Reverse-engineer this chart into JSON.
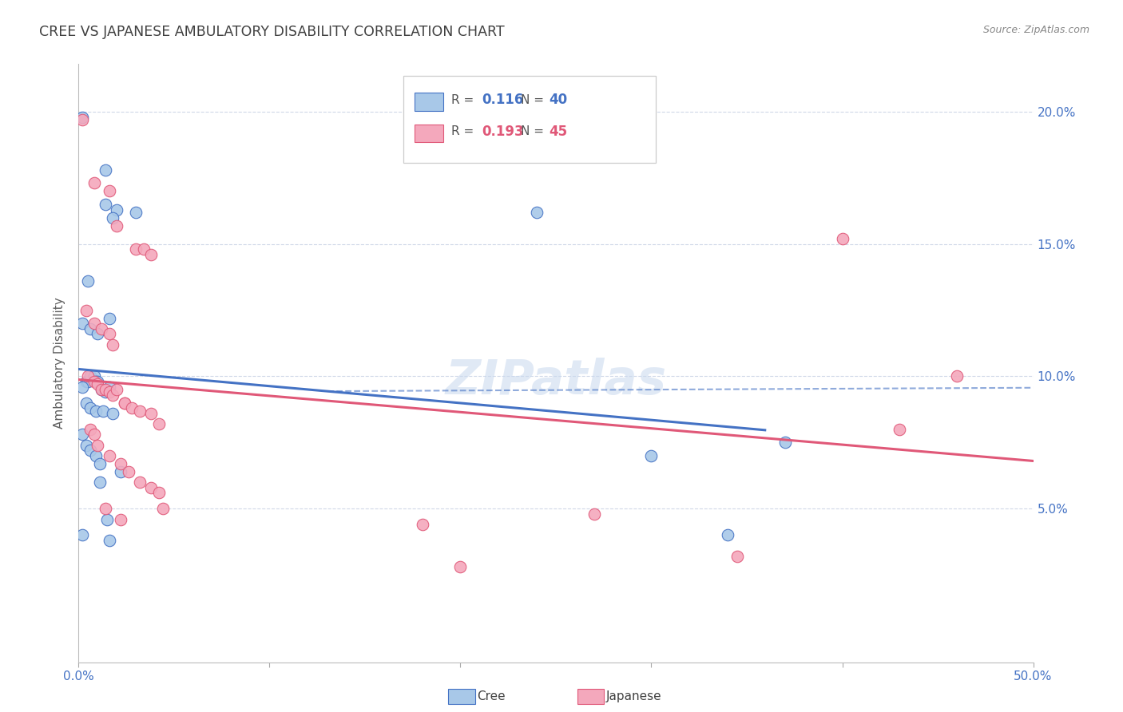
{
  "title": "CREE VS JAPANESE AMBULATORY DISABILITY CORRELATION CHART",
  "source": "Source: ZipAtlas.com",
  "ylabel": "Ambulatory Disability",
  "xlim": [
    0.0,
    0.5
  ],
  "ylim": [
    -0.008,
    0.218
  ],
  "yticks": [
    0.05,
    0.1,
    0.15,
    0.2
  ],
  "ytick_labels": [
    "5.0%",
    "10.0%",
    "15.0%",
    "20.0%"
  ],
  "xticks": [
    0.0,
    0.1,
    0.2,
    0.3,
    0.4,
    0.5
  ],
  "xtick_labels": [
    "0.0%",
    "",
    "",
    "",
    "",
    "50.0%"
  ],
  "cree_R": "0.116",
  "cree_N": "40",
  "japanese_R": "0.193",
  "japanese_N": "45",
  "cree_color": "#a8c8e8",
  "japanese_color": "#f4a8bc",
  "cree_line_color": "#4472c4",
  "japanese_line_color": "#e05878",
  "cree_scatter": [
    [
      0.002,
      0.198
    ],
    [
      0.014,
      0.178
    ],
    [
      0.014,
      0.165
    ],
    [
      0.02,
      0.163
    ],
    [
      0.018,
      0.16
    ],
    [
      0.03,
      0.162
    ],
    [
      0.005,
      0.136
    ],
    [
      0.002,
      0.12
    ],
    [
      0.006,
      0.118
    ],
    [
      0.01,
      0.116
    ],
    [
      0.016,
      0.122
    ],
    [
      0.004,
      0.098
    ],
    [
      0.005,
      0.098
    ],
    [
      0.006,
      0.1
    ],
    [
      0.008,
      0.1
    ],
    [
      0.009,
      0.098
    ],
    [
      0.01,
      0.098
    ],
    [
      0.012,
      0.095
    ],
    [
      0.014,
      0.094
    ],
    [
      0.016,
      0.096
    ],
    [
      0.002,
      0.096
    ],
    [
      0.004,
      0.09
    ],
    [
      0.006,
      0.088
    ],
    [
      0.009,
      0.087
    ],
    [
      0.013,
      0.087
    ],
    [
      0.018,
      0.086
    ],
    [
      0.002,
      0.078
    ],
    [
      0.004,
      0.074
    ],
    [
      0.006,
      0.072
    ],
    [
      0.009,
      0.07
    ],
    [
      0.011,
      0.067
    ],
    [
      0.022,
      0.064
    ],
    [
      0.011,
      0.06
    ],
    [
      0.002,
      0.04
    ],
    [
      0.015,
      0.046
    ],
    [
      0.016,
      0.038
    ],
    [
      0.24,
      0.162
    ],
    [
      0.3,
      0.07
    ],
    [
      0.34,
      0.04
    ],
    [
      0.37,
      0.075
    ]
  ],
  "japanese_scatter": [
    [
      0.002,
      0.197
    ],
    [
      0.008,
      0.173
    ],
    [
      0.016,
      0.17
    ],
    [
      0.02,
      0.157
    ],
    [
      0.03,
      0.148
    ],
    [
      0.034,
      0.148
    ],
    [
      0.038,
      0.146
    ],
    [
      0.004,
      0.125
    ],
    [
      0.008,
      0.12
    ],
    [
      0.012,
      0.118
    ],
    [
      0.016,
      0.116
    ],
    [
      0.018,
      0.112
    ],
    [
      0.005,
      0.1
    ],
    [
      0.008,
      0.098
    ],
    [
      0.01,
      0.097
    ],
    [
      0.012,
      0.095
    ],
    [
      0.014,
      0.095
    ],
    [
      0.016,
      0.094
    ],
    [
      0.018,
      0.093
    ],
    [
      0.02,
      0.095
    ],
    [
      0.024,
      0.09
    ],
    [
      0.024,
      0.09
    ],
    [
      0.028,
      0.088
    ],
    [
      0.032,
      0.087
    ],
    [
      0.038,
      0.086
    ],
    [
      0.042,
      0.082
    ],
    [
      0.006,
      0.08
    ],
    [
      0.008,
      0.078
    ],
    [
      0.01,
      0.074
    ],
    [
      0.016,
      0.07
    ],
    [
      0.022,
      0.067
    ],
    [
      0.026,
      0.064
    ],
    [
      0.032,
      0.06
    ],
    [
      0.038,
      0.058
    ],
    [
      0.042,
      0.056
    ],
    [
      0.014,
      0.05
    ],
    [
      0.022,
      0.046
    ],
    [
      0.044,
      0.05
    ],
    [
      0.18,
      0.044
    ],
    [
      0.2,
      0.028
    ],
    [
      0.27,
      0.048
    ],
    [
      0.345,
      0.032
    ],
    [
      0.4,
      0.152
    ],
    [
      0.43,
      0.08
    ],
    [
      0.46,
      0.1
    ]
  ],
  "watermark": "ZIPatlas",
  "background_color": "#ffffff",
  "grid_color": "#d0d8e8",
  "text_color": "#4472c4",
  "title_color": "#404040"
}
